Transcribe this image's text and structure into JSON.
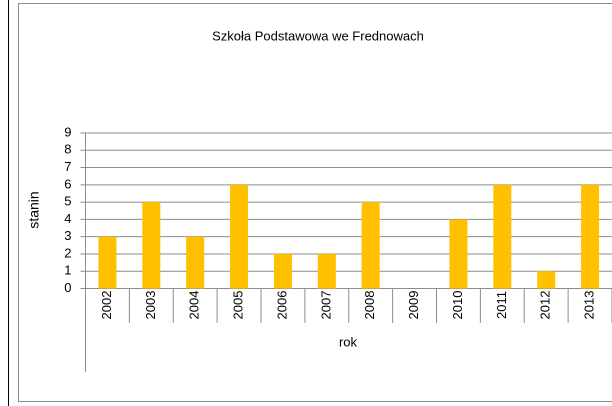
{
  "chart_data": {
    "type": "bar",
    "title": "Szkoła Podstawowa we Frednowach",
    "y_label": "stanin",
    "x_label": "rok",
    "categories": [
      "2002",
      "2003",
      "2004",
      "2005",
      "2006",
      "2007",
      "2008",
      "2009",
      "2010",
      "2011",
      "2012",
      "2013"
    ],
    "values": [
      3,
      5,
      3,
      6,
      2,
      2,
      5,
      0,
      4,
      6,
      1,
      6
    ],
    "color": "#ffc000",
    "ylim": [
      0,
      9
    ],
    "yticks": [
      0,
      1,
      2,
      3,
      4,
      5,
      6,
      7,
      8,
      9
    ],
    "grid": true
  }
}
